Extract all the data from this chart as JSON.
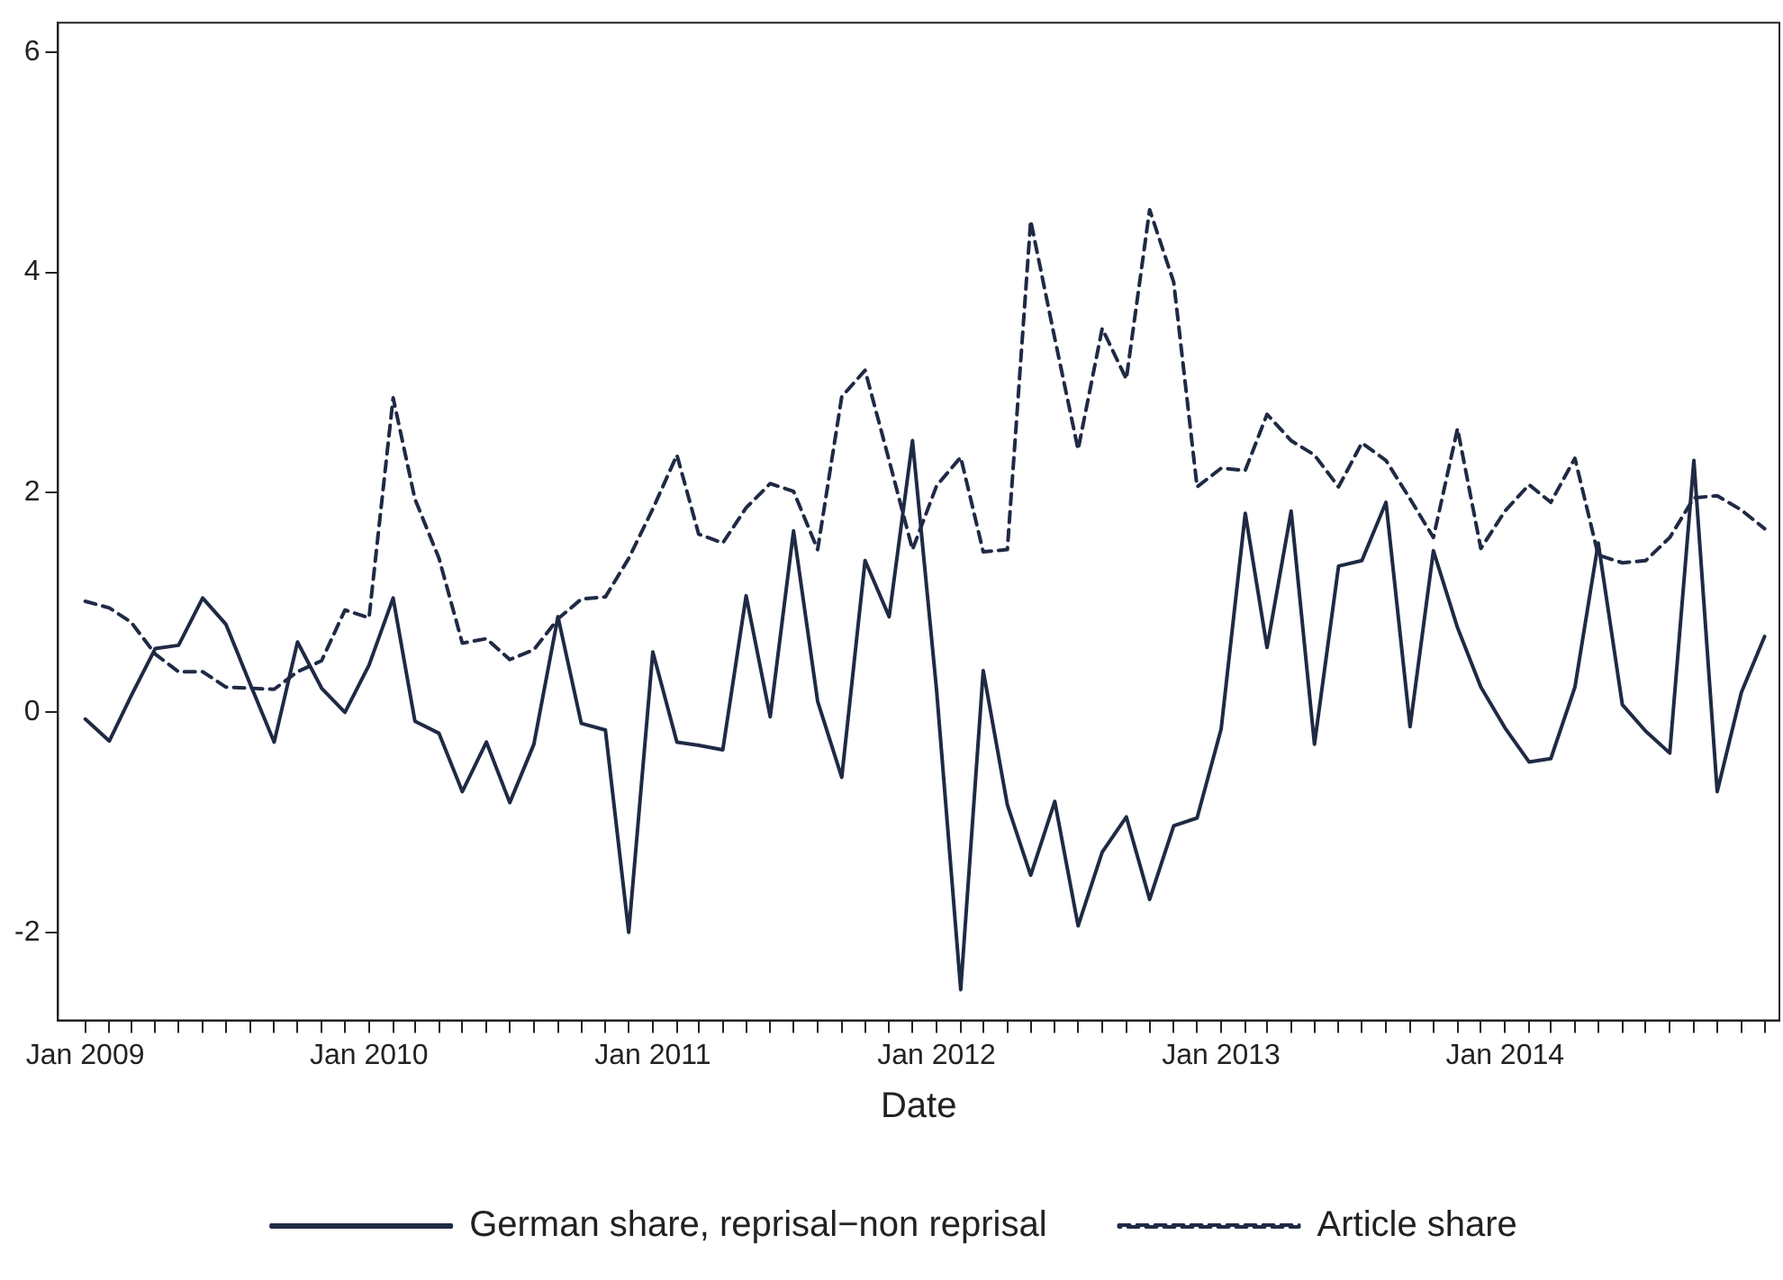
{
  "chart_data": {
    "type": "line",
    "xlabel": "Date",
    "x": [
      "2009-01",
      "2009-02",
      "2009-03",
      "2009-04",
      "2009-05",
      "2009-06",
      "2009-07",
      "2009-08",
      "2009-09",
      "2009-10",
      "2009-11",
      "2009-12",
      "2010-01",
      "2010-02",
      "2010-03",
      "2010-04",
      "2010-05",
      "2010-06",
      "2010-07",
      "2010-08",
      "2010-09",
      "2010-10",
      "2010-11",
      "2010-12",
      "2011-01",
      "2011-02",
      "2011-03",
      "2011-04",
      "2011-05",
      "2011-06",
      "2011-07",
      "2011-08",
      "2011-09",
      "2011-10",
      "2011-11",
      "2011-12",
      "2012-01",
      "2012-02",
      "2012-03",
      "2012-04",
      "2012-05",
      "2012-06",
      "2012-07",
      "2012-08",
      "2012-09",
      "2012-10",
      "2012-11",
      "2012-12",
      "2013-01",
      "2013-02",
      "2013-03",
      "2013-04",
      "2013-05",
      "2013-06",
      "2013-07",
      "2013-08",
      "2013-09",
      "2013-10",
      "2013-11",
      "2013-12",
      "2014-01",
      "2014-02",
      "2014-03",
      "2014-04",
      "2014-05",
      "2014-06",
      "2014-07",
      "2014-08",
      "2014-09",
      "2014-10",
      "2014-11",
      "2014-12"
    ],
    "series": [
      {
        "name": "German share, reprisal−non reprisal",
        "color": "#1f2a44",
        "line_style": "solid",
        "values": [
          -0.06,
          -0.26,
          0.15,
          0.58,
          0.61,
          1.04,
          0.8,
          0.26,
          -0.27,
          0.64,
          0.22,
          0.0,
          0.43,
          1.04,
          -0.08,
          -0.19,
          -0.72,
          -0.27,
          -0.82,
          -0.29,
          0.87,
          -0.1,
          -0.16,
          -2.0,
          0.55,
          -0.27,
          -0.3,
          -0.34,
          1.06,
          -0.04,
          1.65,
          0.1,
          -0.59,
          1.38,
          0.87,
          2.47,
          0.2,
          -2.52,
          0.38,
          -0.84,
          -1.48,
          -0.81,
          -1.94,
          -1.27,
          -0.95,
          -1.7,
          -1.03,
          -0.96,
          -0.15,
          1.81,
          0.59,
          1.83,
          -0.29,
          1.33,
          1.38,
          1.91,
          -0.13,
          1.47,
          0.77,
          0.23,
          -0.14,
          -0.45,
          -0.42,
          0.23,
          1.54,
          0.07,
          -0.17,
          -0.37,
          2.29,
          -0.72,
          0.18,
          0.69
        ]
      },
      {
        "name": "Article share",
        "color": "#1f2a44",
        "line_style": "dashed",
        "values": [
          1.01,
          0.95,
          0.82,
          0.53,
          0.37,
          0.37,
          0.23,
          0.22,
          0.21,
          0.37,
          0.47,
          0.93,
          0.86,
          2.86,
          1.94,
          1.4,
          0.63,
          0.67,
          0.48,
          0.57,
          0.85,
          1.03,
          1.05,
          1.4,
          1.85,
          2.34,
          1.62,
          1.54,
          1.86,
          2.08,
          2.01,
          1.48,
          2.87,
          3.11,
          2.29,
          1.48,
          2.06,
          2.32,
          1.46,
          1.48,
          4.47,
          3.4,
          2.39,
          3.49,
          3.03,
          4.57,
          3.91,
          2.05,
          2.22,
          2.2,
          2.71,
          2.47,
          2.34,
          2.05,
          2.45,
          2.29,
          1.94,
          1.59,
          2.58,
          1.49,
          1.83,
          2.07,
          1.91,
          2.31,
          1.43,
          1.36,
          1.38,
          1.59,
          1.95,
          1.97,
          1.84,
          1.67
        ]
      }
    ],
    "xlim": [
      "2008-11-27",
      "2014-12-20"
    ],
    "xticks": [
      {
        "value": "2009-01",
        "label": "Jan 2009"
      },
      {
        "value": "2009-02",
        "label": null
      },
      {
        "value": "2009-03",
        "label": null
      },
      {
        "value": "2009-04",
        "label": null
      },
      {
        "value": "2009-05",
        "label": null
      },
      {
        "value": "2009-06",
        "label": null
      },
      {
        "value": "2009-07",
        "label": null
      },
      {
        "value": "2009-08",
        "label": null
      },
      {
        "value": "2009-09",
        "label": null
      },
      {
        "value": "2009-10",
        "label": null
      },
      {
        "value": "2009-11",
        "label": null
      },
      {
        "value": "2009-12",
        "label": null
      },
      {
        "value": "2010-01",
        "label": "Jan 2010"
      },
      {
        "value": "2010-02",
        "label": null
      },
      {
        "value": "2010-03",
        "label": null
      },
      {
        "value": "2010-04",
        "label": null
      },
      {
        "value": "2010-05",
        "label": null
      },
      {
        "value": "2010-06",
        "label": null
      },
      {
        "value": "2010-07",
        "label": null
      },
      {
        "value": "2010-08",
        "label": null
      },
      {
        "value": "2010-09",
        "label": null
      },
      {
        "value": "2010-10",
        "label": null
      },
      {
        "value": "2010-11",
        "label": null
      },
      {
        "value": "2010-12",
        "label": null
      },
      {
        "value": "2011-01",
        "label": "Jan 2011"
      },
      {
        "value": "2011-02",
        "label": null
      },
      {
        "value": "2011-03",
        "label": null
      },
      {
        "value": "2011-04",
        "label": null
      },
      {
        "value": "2011-05",
        "label": null
      },
      {
        "value": "2011-06",
        "label": null
      },
      {
        "value": "2011-07",
        "label": null
      },
      {
        "value": "2011-08",
        "label": null
      },
      {
        "value": "2011-09",
        "label": null
      },
      {
        "value": "2011-10",
        "label": null
      },
      {
        "value": "2011-11",
        "label": null
      },
      {
        "value": "2011-12",
        "label": null
      },
      {
        "value": "2012-01",
        "label": "Jan 2012"
      },
      {
        "value": "2012-02",
        "label": null
      },
      {
        "value": "2012-03",
        "label": null
      },
      {
        "value": "2012-04",
        "label": null
      },
      {
        "value": "2012-05",
        "label": null
      },
      {
        "value": "2012-06",
        "label": null
      },
      {
        "value": "2012-07",
        "label": null
      },
      {
        "value": "2012-08",
        "label": null
      },
      {
        "value": "2012-09",
        "label": null
      },
      {
        "value": "2012-10",
        "label": null
      },
      {
        "value": "2012-11",
        "label": null
      },
      {
        "value": "2012-12",
        "label": null
      },
      {
        "value": "2013-01",
        "label": "Jan 2013"
      },
      {
        "value": "2013-02",
        "label": null
      },
      {
        "value": "2013-03",
        "label": null
      },
      {
        "value": "2013-04",
        "label": null
      },
      {
        "value": "2013-05",
        "label": null
      },
      {
        "value": "2013-06",
        "label": null
      },
      {
        "value": "2013-07",
        "label": null
      },
      {
        "value": "2013-08",
        "label": null
      },
      {
        "value": "2013-09",
        "label": null
      },
      {
        "value": "2013-10",
        "label": null
      },
      {
        "value": "2013-11",
        "label": null
      },
      {
        "value": "2013-12",
        "label": null
      },
      {
        "value": "2014-01",
        "label": "Jan 2014"
      },
      {
        "value": "2014-02",
        "label": null
      },
      {
        "value": "2014-03",
        "label": null
      },
      {
        "value": "2014-04",
        "label": null
      },
      {
        "value": "2014-05",
        "label": null
      },
      {
        "value": "2014-06",
        "label": null
      },
      {
        "value": "2014-07",
        "label": null
      },
      {
        "value": "2014-08",
        "label": null
      },
      {
        "value": "2014-09",
        "label": null
      },
      {
        "value": "2014-10",
        "label": null
      },
      {
        "value": "2014-11",
        "label": null
      },
      {
        "value": "2014-12",
        "label": null
      }
    ],
    "ylim": [
      -2.8,
      6.27
    ],
    "yticks": [
      -2,
      0,
      2,
      4,
      6
    ],
    "grid": false,
    "legend": "bottom",
    "marker": "none"
  }
}
